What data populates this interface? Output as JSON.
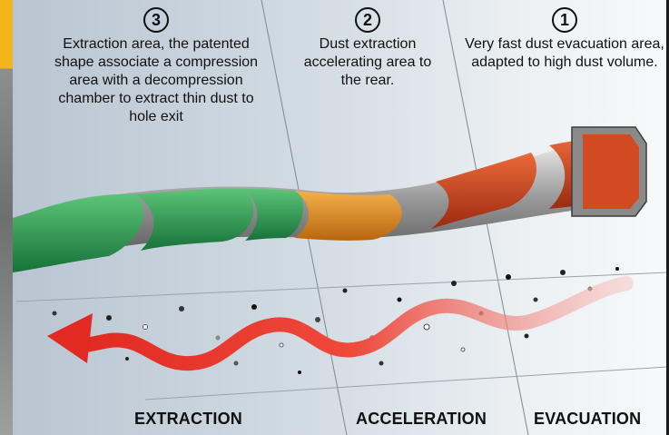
{
  "steps": [
    {
      "number": "3",
      "text": "Extraction area, the patented shape associate a compression area with a decompression chamber to extract thin dust to hole exit"
    },
    {
      "number": "2",
      "text": "Dust extraction accelerating area to the rear."
    },
    {
      "number": "1",
      "text": "Very fast dust evacuation area, adapted to high dust volume."
    }
  ],
  "zones": [
    "EXTRACTION",
    "ACCELERATION",
    "EVACUATION"
  ],
  "colors": {
    "extraction": "#2f9a4d",
    "acceleration": "#d98a1f",
    "evacuation": "#c9421d",
    "arrow": "#e8372b",
    "accent": "#f2b51c"
  }
}
